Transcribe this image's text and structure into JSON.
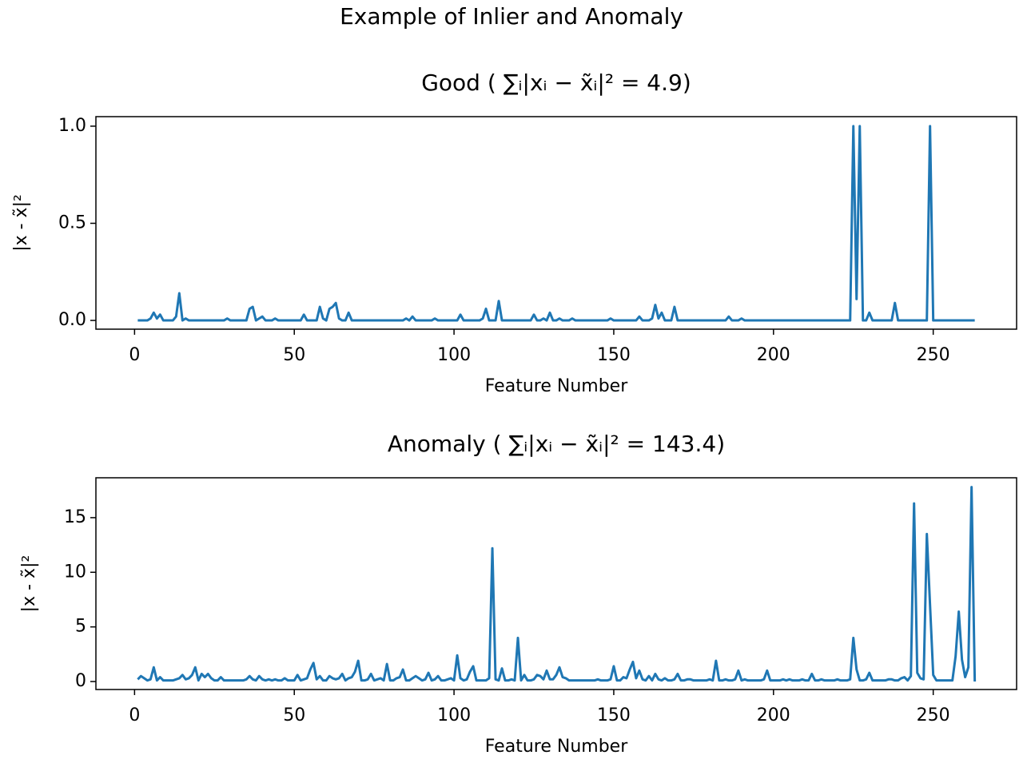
{
  "title": "Example of Inlier and Anomaly",
  "chart_data": [
    {
      "type": "line",
      "title": "Good ( ∑ᵢ|xᵢ − x̃ᵢ|² = 4.9)",
      "xlabel": "Feature Number",
      "ylabel": "|x - x̃|²",
      "color": "#1f77b4",
      "x": [
        1,
        2,
        3,
        4,
        5,
        6,
        7,
        8,
        9,
        10,
        11,
        12,
        13,
        14,
        15,
        16,
        17,
        18,
        19,
        20,
        21,
        22,
        23,
        24,
        25,
        26,
        27,
        28,
        29,
        30,
        31,
        32,
        33,
        34,
        35,
        36,
        37,
        38,
        39,
        40,
        41,
        42,
        43,
        44,
        45,
        46,
        47,
        48,
        49,
        50,
        51,
        52,
        53,
        54,
        55,
        56,
        57,
        58,
        59,
        60,
        61,
        62,
        63,
        64,
        65,
        66,
        67,
        68,
        69,
        70,
        71,
        72,
        73,
        74,
        75,
        76,
        77,
        78,
        79,
        80,
        81,
        82,
        83,
        84,
        85,
        86,
        87,
        88,
        89,
        90,
        91,
        92,
        93,
        94,
        95,
        96,
        97,
        98,
        99,
        100,
        101,
        102,
        103,
        104,
        105,
        106,
        107,
        108,
        109,
        110,
        111,
        112,
        113,
        114,
        115,
        116,
        117,
        118,
        119,
        120,
        121,
        122,
        123,
        124,
        125,
        126,
        127,
        128,
        129,
        130,
        131,
        132,
        133,
        134,
        135,
        136,
        137,
        138,
        139,
        140,
        141,
        142,
        143,
        144,
        145,
        146,
        147,
        148,
        149,
        150,
        151,
        152,
        153,
        154,
        155,
        156,
        157,
        158,
        159,
        160,
        161,
        162,
        163,
        164,
        165,
        166,
        167,
        168,
        169,
        170,
        171,
        172,
        173,
        174,
        175,
        176,
        177,
        178,
        179,
        180,
        181,
        182,
        183,
        184,
        185,
        186,
        187,
        188,
        189,
        190,
        191,
        192,
        193,
        194,
        195,
        196,
        197,
        198,
        199,
        200,
        201,
        202,
        203,
        204,
        205,
        206,
        207,
        208,
        209,
        210,
        211,
        212,
        213,
        214,
        215,
        216,
        217,
        218,
        219,
        220,
        221,
        222,
        223,
        224,
        225,
        226,
        227,
        228,
        229,
        230,
        231,
        232,
        233,
        234,
        235,
        236,
        237,
        238,
        239,
        240,
        241,
        242,
        243,
        244,
        245,
        246,
        247,
        248,
        249,
        250,
        251,
        252,
        253,
        254,
        255,
        256,
        257,
        258,
        259,
        260,
        261,
        262,
        263
      ],
      "values": [
        0,
        0,
        0,
        0,
        0.01,
        0.04,
        0.01,
        0.03,
        0,
        0,
        0,
        0,
        0.02,
        0.14,
        0,
        0.01,
        0,
        0,
        0,
        0,
        0,
        0,
        0,
        0,
        0,
        0,
        0,
        0,
        0.01,
        0,
        0,
        0,
        0,
        0,
        0,
        0.06,
        0.07,
        0,
        0.01,
        0.02,
        0,
        0,
        0,
        0.01,
        0,
        0,
        0,
        0,
        0,
        0,
        0,
        0,
        0.03,
        0,
        0,
        0,
        0,
        0.07,
        0.01,
        0,
        0.06,
        0.07,
        0.09,
        0.01,
        0,
        0,
        0.04,
        0,
        0,
        0,
        0,
        0,
        0,
        0,
        0,
        0,
        0,
        0,
        0,
        0,
        0,
        0,
        0,
        0,
        0.01,
        0,
        0.02,
        0,
        0,
        0,
        0,
        0,
        0,
        0.01,
        0,
        0,
        0,
        0,
        0,
        0,
        0,
        0.03,
        0,
        0,
        0,
        0,
        0,
        0,
        0.01,
        0.06,
        0,
        0,
        0,
        0.1,
        0,
        0,
        0,
        0,
        0,
        0,
        0,
        0,
        0,
        0,
        0.03,
        0,
        0,
        0.01,
        0,
        0.04,
        0,
        0,
        0.01,
        0,
        0,
        0,
        0.01,
        0,
        0,
        0,
        0,
        0,
        0,
        0,
        0,
        0,
        0,
        0,
        0.01,
        0,
        0,
        0,
        0,
        0,
        0,
        0,
        0,
        0.02,
        0,
        0,
        0,
        0.01,
        0.08,
        0.01,
        0.04,
        0,
        0,
        0,
        0.07,
        0,
        0,
        0,
        0,
        0,
        0,
        0,
        0,
        0,
        0,
        0,
        0,
        0,
        0,
        0,
        0,
        0.02,
        0,
        0,
        0,
        0.01,
        0,
        0,
        0,
        0,
        0,
        0,
        0,
        0,
        0,
        0,
        0,
        0,
        0,
        0,
        0,
        0,
        0,
        0,
        0,
        0,
        0,
        0,
        0,
        0,
        0,
        0,
        0,
        0,
        0,
        0,
        0,
        0,
        0,
        0,
        1.0,
        0.11,
        1.0,
        0,
        0,
        0.04,
        0,
        0,
        0,
        0,
        0,
        0,
        0,
        0.09,
        0,
        0,
        0,
        0,
        0,
        0,
        0,
        0,
        0,
        0,
        1.0,
        0,
        0,
        0,
        0,
        0,
        0,
        0,
        0,
        0,
        0,
        0,
        0,
        0,
        0
      ],
      "xlim": [
        -12.1,
        276.1
      ],
      "xticks": [
        0,
        50,
        100,
        150,
        200,
        250
      ],
      "ylim": [
        -0.045,
        1.049
      ],
      "yticks": [
        {
          "value": 0,
          "label": "0.0"
        },
        0.5,
        {
          "value": 1,
          "label": "1.0"
        }
      ]
    },
    {
      "type": "line",
      "title": "Anomaly ( ∑ᵢ|xᵢ − x̃ᵢ|² = 143.4)",
      "xlabel": "Feature Number",
      "ylabel": "|x - x̃|²",
      "color": "#1f77b4",
      "x": [
        1,
        2,
        3,
        4,
        5,
        6,
        7,
        8,
        9,
        10,
        11,
        12,
        13,
        14,
        15,
        16,
        17,
        18,
        19,
        20,
        21,
        22,
        23,
        24,
        25,
        26,
        27,
        28,
        29,
        30,
        31,
        32,
        33,
        34,
        35,
        36,
        37,
        38,
        39,
        40,
        41,
        42,
        43,
        44,
        45,
        46,
        47,
        48,
        49,
        50,
        51,
        52,
        53,
        54,
        55,
        56,
        57,
        58,
        59,
        60,
        61,
        62,
        63,
        64,
        65,
        66,
        67,
        68,
        69,
        70,
        71,
        72,
        73,
        74,
        75,
        76,
        77,
        78,
        79,
        80,
        81,
        82,
        83,
        84,
        85,
        86,
        87,
        88,
        89,
        90,
        91,
        92,
        93,
        94,
        95,
        96,
        97,
        98,
        99,
        100,
        101,
        102,
        103,
        104,
        105,
        106,
        107,
        108,
        109,
        110,
        111,
        112,
        113,
        114,
        115,
        116,
        117,
        118,
        119,
        120,
        121,
        122,
        123,
        124,
        125,
        126,
        127,
        128,
        129,
        130,
        131,
        132,
        133,
        134,
        135,
        136,
        137,
        138,
        139,
        140,
        141,
        142,
        143,
        144,
        145,
        146,
        147,
        148,
        149,
        150,
        151,
        152,
        153,
        154,
        155,
        156,
        157,
        158,
        159,
        160,
        161,
        162,
        163,
        164,
        165,
        166,
        167,
        168,
        169,
        170,
        171,
        172,
        173,
        174,
        175,
        176,
        177,
        178,
        179,
        180,
        181,
        182,
        183,
        184,
        185,
        186,
        187,
        188,
        189,
        190,
        191,
        192,
        193,
        194,
        195,
        196,
        197,
        198,
        199,
        200,
        201,
        202,
        203,
        204,
        205,
        206,
        207,
        208,
        209,
        210,
        211,
        212,
        213,
        214,
        215,
        216,
        217,
        218,
        219,
        220,
        221,
        222,
        223,
        224,
        225,
        226,
        227,
        228,
        229,
        230,
        231,
        232,
        233,
        234,
        235,
        236,
        237,
        238,
        239,
        240,
        241,
        242,
        243,
        244,
        245,
        246,
        247,
        248,
        249,
        250,
        251,
        252,
        253,
        254,
        255,
        256,
        257,
        258,
        259,
        260,
        261,
        262,
        263
      ],
      "values": [
        0.2,
        0.5,
        0.3,
        0.1,
        0.2,
        1.3,
        0.1,
        0.4,
        0.1,
        0.1,
        0.1,
        0.1,
        0.2,
        0.3,
        0.6,
        0.2,
        0.3,
        0.6,
        1.3,
        0.1,
        0.7,
        0.4,
        0.7,
        0.3,
        0.1,
        0.1,
        0.4,
        0.1,
        0.1,
        0.1,
        0.1,
        0.1,
        0.1,
        0.1,
        0.2,
        0.5,
        0.2,
        0.1,
        0.5,
        0.2,
        0.1,
        0.2,
        0.1,
        0.2,
        0.1,
        0.1,
        0.3,
        0.1,
        0.1,
        0.1,
        0.6,
        0.1,
        0.2,
        0.3,
        1.1,
        1.7,
        0.2,
        0.5,
        0.1,
        0.1,
        0.5,
        0.3,
        0.2,
        0.3,
        0.7,
        0.1,
        0.3,
        0.4,
        0.9,
        1.9,
        0.1,
        0.1,
        0.2,
        0.7,
        0.1,
        0.2,
        0.3,
        0.1,
        1.6,
        0.1,
        0.1,
        0.3,
        0.4,
        1.1,
        0.1,
        0.1,
        0.3,
        0.5,
        0.3,
        0.1,
        0.2,
        0.8,
        0.1,
        0.2,
        0.5,
        0.1,
        0.1,
        0.2,
        0.3,
        0.1,
        2.4,
        0.3,
        0.1,
        0.2,
        0.9,
        1.4,
        0.1,
        0.1,
        0.1,
        0.1,
        0.3,
        12.2,
        0.2,
        0.1,
        1.2,
        0.1,
        0.1,
        0.2,
        0.1,
        4.0,
        0.1,
        0.6,
        0.1,
        0.1,
        0.2,
        0.6,
        0.5,
        0.2,
        1.0,
        0.2,
        0.2,
        0.6,
        1.3,
        0.4,
        0.3,
        0.1,
        0.1,
        0.1,
        0.1,
        0.1,
        0.1,
        0.1,
        0.1,
        0.1,
        0.2,
        0.1,
        0.1,
        0.1,
        0.2,
        1.4,
        0.1,
        0.1,
        0.4,
        0.3,
        1.1,
        1.8,
        0.3,
        1.0,
        0.2,
        0.1,
        0.5,
        0.1,
        0.7,
        0.2,
        0.1,
        0.3,
        0.1,
        0.1,
        0.2,
        0.7,
        0.1,
        0.1,
        0.2,
        0.2,
        0.1,
        0.1,
        0.1,
        0.1,
        0.1,
        0.2,
        0.1,
        1.9,
        0.1,
        0.1,
        0.2,
        0.1,
        0.1,
        0.2,
        1.0,
        0.1,
        0.2,
        0.1,
        0.1,
        0.1,
        0.1,
        0.1,
        0.2,
        1.0,
        0.1,
        0.1,
        0.1,
        0.1,
        0.2,
        0.1,
        0.2,
        0.1,
        0.1,
        0.1,
        0.2,
        0.1,
        0.1,
        0.7,
        0.1,
        0.1,
        0.2,
        0.1,
        0.1,
        0.1,
        0.1,
        0.2,
        0.1,
        0.1,
        0.1,
        0.2,
        4.0,
        1.1,
        0.1,
        0.1,
        0.2,
        0.8,
        0.1,
        0.1,
        0.1,
        0.1,
        0.1,
        0.2,
        0.2,
        0.1,
        0.1,
        0.3,
        0.4,
        0.1,
        0.5,
        16.3,
        0.8,
        0.3,
        0.2,
        13.5,
        7.0,
        0.6,
        0.1,
        0.1,
        0.1,
        0.1,
        0.1,
        0.1,
        2.3,
        6.4,
        2.0,
        0.4,
        1.3,
        17.8,
        0.0
      ],
      "xlim": [
        -12.1,
        276.1
      ],
      "xticks": [
        0,
        50,
        100,
        150,
        200,
        250
      ],
      "ylim": [
        -0.73,
        18.65
      ],
      "yticks": [
        0,
        5,
        10,
        15
      ]
    }
  ]
}
